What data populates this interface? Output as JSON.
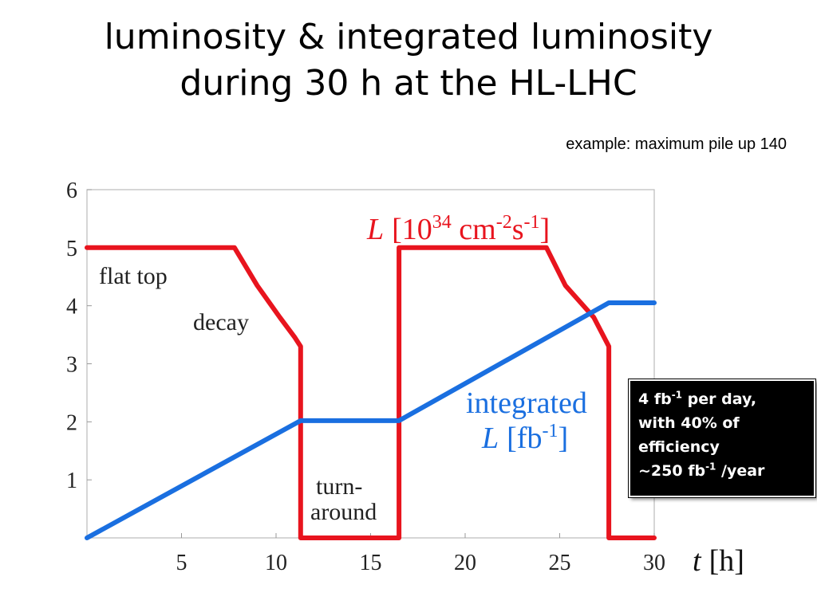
{
  "slide": {
    "title_line1": "luminosity & integrated luminosity",
    "title_line2": "during 30 h at the HL-LHC",
    "subtitle": "example: maximum pile up 140"
  },
  "infobox": {
    "line1": {
      "a": "4 fb",
      "sup": "-1",
      "b": " per day,"
    },
    "line2": "with 40% of",
    "line3": "efficiency",
    "line4": {
      "a": "~250 fb",
      "sup": "-1",
      "b": " /year"
    }
  },
  "chart_data": {
    "type": "line",
    "xlim": [
      0,
      30
    ],
    "ylim": [
      0,
      6
    ],
    "x_ticks": [
      5,
      10,
      15,
      20,
      25,
      30
    ],
    "y_ticks": [
      1,
      2,
      3,
      4,
      5,
      6
    ],
    "xlabel": {
      "var": "t",
      "unit": "[h]"
    },
    "grid": false,
    "colors": {
      "luminosity": "#e8141e",
      "integrated": "#1a6fe0"
    },
    "series": [
      {
        "name": "L [10^34 cm^-2 s^-1]",
        "label_var": "L",
        "label_unit": {
          "pre": "[10",
          "exp1": "34",
          "mid": " cm",
          "exp2": "-2",
          "mid2": "s",
          "exp3": "-1",
          "post": "]"
        },
        "x": [
          0,
          7.8,
          9.0,
          10.2,
          11.0,
          11.3,
          11.3,
          16.5,
          16.5,
          24.3,
          25.3,
          26.8,
          27.6,
          27.6,
          30
        ],
        "y": [
          5,
          5,
          4.35,
          3.8,
          3.45,
          3.3,
          0,
          0,
          5,
          5,
          4.35,
          3.8,
          3.3,
          0,
          0
        ]
      },
      {
        "name": "integrated L [fb^-1]",
        "label_line1": "integrated",
        "label_var": "L",
        "label_unit": {
          "pre": "[fb",
          "exp1": "-1",
          "post": "]"
        },
        "x": [
          0,
          11.3,
          16.5,
          27.6,
          30
        ],
        "y": [
          0,
          2.02,
          2.02,
          4.05,
          4.05
        ]
      }
    ],
    "annotations": [
      "flat top",
      "decay",
      "turn-",
      "around"
    ]
  }
}
